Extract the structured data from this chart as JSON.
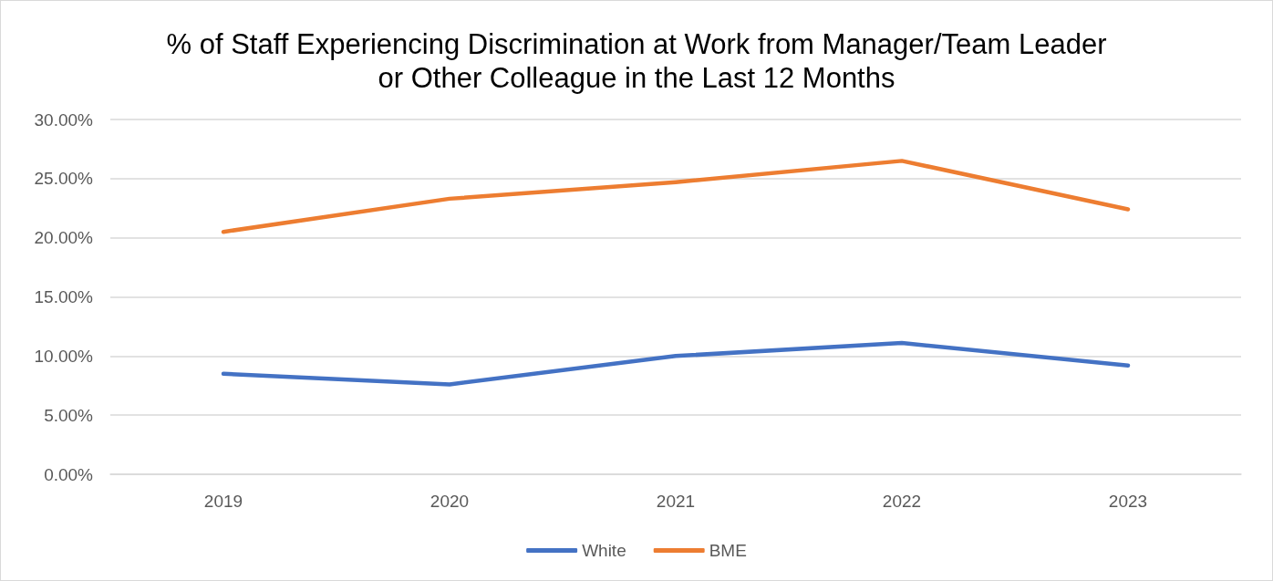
{
  "chart_data": {
    "type": "line",
    "title": "% of Staff Experiencing Discrimination at Work from Manager/Team Leader\nor Other Colleague in the Last 12 Months",
    "categories": [
      "2019",
      "2020",
      "2021",
      "2022",
      "2023"
    ],
    "series": [
      {
        "name": "White",
        "color": "#4472c4",
        "values": [
          8.5,
          7.6,
          10.0,
          11.1,
          9.2
        ]
      },
      {
        "name": "BME",
        "color": "#ed7d31",
        "values": [
          20.5,
          23.3,
          24.7,
          26.5,
          22.4
        ]
      }
    ],
    "ylim": [
      0,
      30
    ],
    "yticks": [
      {
        "value": 0,
        "label": "0.00%"
      },
      {
        "value": 5,
        "label": "5.00%"
      },
      {
        "value": 10,
        "label": "10.00%"
      },
      {
        "value": 15,
        "label": "15.00%"
      },
      {
        "value": 20,
        "label": "20.00%"
      },
      {
        "value": 25,
        "label": "25.00%"
      },
      {
        "value": 30,
        "label": "30.00%"
      }
    ],
    "grid": "y",
    "legend": "bottom",
    "marker": "none",
    "line_style": "solid"
  }
}
